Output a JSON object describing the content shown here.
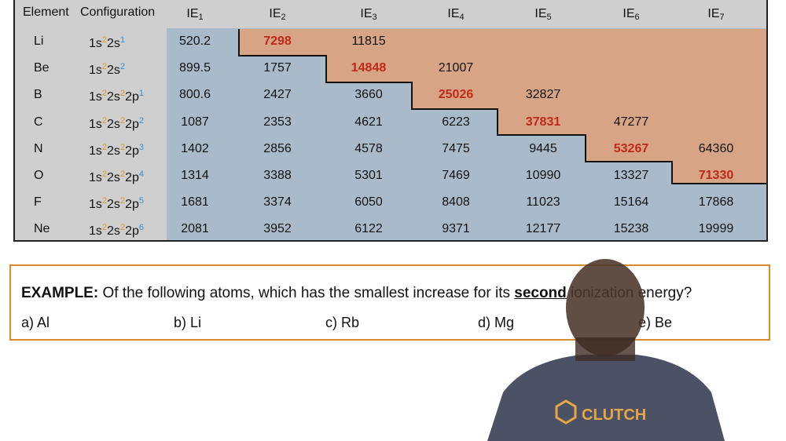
{
  "table": {
    "headers": {
      "element": "Element",
      "configuration": "Configuration",
      "ie": [
        {
          "base": "IE",
          "sub": "1"
        },
        {
          "base": "IE",
          "sub": "2"
        },
        {
          "base": "IE",
          "sub": "3"
        },
        {
          "base": "IE",
          "sub": "4"
        },
        {
          "base": "IE",
          "sub": "5"
        },
        {
          "base": "IE",
          "sub": "6"
        },
        {
          "base": "IE",
          "sub": "7"
        }
      ]
    },
    "rows": [
      {
        "element": "Li",
        "config": [
          [
            "1s",
            "2"
          ],
          [
            "2s",
            "1"
          ]
        ],
        "values": [
          "520.2",
          "7298",
          "11815",
          "",
          "",
          "",
          ""
        ],
        "highlight": 1
      },
      {
        "element": "Be",
        "config": [
          [
            "1s",
            "2"
          ],
          [
            "2s",
            "2"
          ]
        ],
        "values": [
          "899.5",
          "1757",
          "14848",
          "21007",
          "",
          "",
          ""
        ],
        "highlight": 2
      },
      {
        "element": "B",
        "config": [
          [
            "1s",
            "2"
          ],
          [
            "2s",
            "2"
          ],
          [
            "2p",
            "1"
          ]
        ],
        "values": [
          "800.6",
          "2427",
          "3660",
          "25026",
          "32827",
          "",
          ""
        ],
        "highlight": 3
      },
      {
        "element": "C",
        "config": [
          [
            "1s",
            "2"
          ],
          [
            "2s",
            "2"
          ],
          [
            "2p",
            "2"
          ]
        ],
        "values": [
          "1087",
          "2353",
          "4621",
          "6223",
          "37831",
          "47277",
          ""
        ],
        "highlight": 4
      },
      {
        "element": "N",
        "config": [
          [
            "1s",
            "2"
          ],
          [
            "2s",
            "2"
          ],
          [
            "2p",
            "3"
          ]
        ],
        "values": [
          "1402",
          "2856",
          "4578",
          "7475",
          "9445",
          "53267",
          "64360"
        ],
        "highlight": 5
      },
      {
        "element": "O",
        "config": [
          [
            "1s",
            "2"
          ],
          [
            "2s",
            "2"
          ],
          [
            "2p",
            "4"
          ]
        ],
        "values": [
          "1314",
          "3388",
          "5301",
          "7469",
          "10990",
          "13327",
          "71330"
        ],
        "highlight": 6
      },
      {
        "element": "F",
        "config": [
          [
            "1s",
            "2"
          ],
          [
            "2s",
            "2"
          ],
          [
            "2p",
            "5"
          ]
        ],
        "values": [
          "1681",
          "3374",
          "6050",
          "8408",
          "11023",
          "15164",
          "17868"
        ],
        "highlight": -1
      },
      {
        "element": "Ne",
        "config": [
          [
            "1s",
            "2"
          ],
          [
            "2s",
            "2"
          ],
          [
            "2p",
            "6"
          ]
        ],
        "values": [
          "2081",
          "3952",
          "6122",
          "9371",
          "12177",
          "15238",
          "19999"
        ],
        "highlight": -1
      }
    ]
  },
  "example": {
    "label": "EXAMPLE:",
    "question_start": " Of the following atoms, which has the smallest increase for its ",
    "question_emphasis": "second",
    "question_end": " ionization energy?",
    "options": [
      "a) Al",
      "b) Li",
      "c)  Rb",
      "d)   Mg",
      "e)  Be"
    ]
  },
  "presenter": {
    "shirt_logo": "CLUTCH"
  },
  "colors": {
    "core_region": "#a9bbcb",
    "valence_region": "#d7a585",
    "highlight_value": "#c0281a",
    "example_border": "#d98a2e",
    "superscript_orange": "#e0962a",
    "superscript_blue": "#2f8fd8"
  }
}
